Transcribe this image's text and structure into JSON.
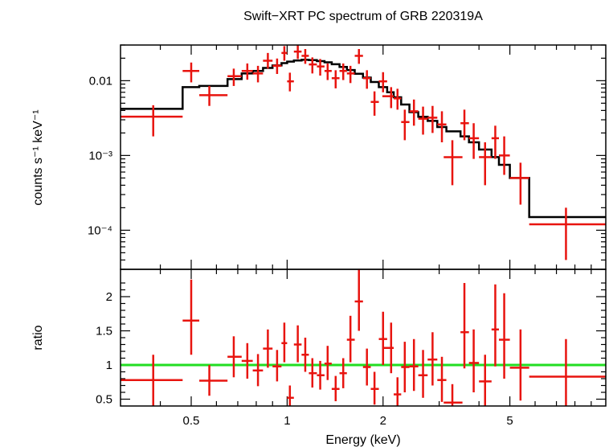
{
  "chart_data": [
    {
      "type": "step+errorbar",
      "panel": "spectrum",
      "title": "Swift−XRT PC spectrum of GRB 220319A",
      "ylabel": "counts s⁻¹ keV⁻¹",
      "xlabel": "",
      "xscale": "log",
      "yscale": "log",
      "xlim": [
        0.3,
        10
      ],
      "ylim": [
        3e-05,
        0.03
      ],
      "y_ticks": [
        {
          "value": 0.01,
          "label": "0.01"
        },
        {
          "value": 0.001,
          "label": "10⁻³"
        },
        {
          "value": 0.0001,
          "label": "10⁻⁴"
        }
      ],
      "colors": {
        "data": "#e8140f",
        "model": "#000000"
      },
      "series": [
        {
          "name": "",
          "kind": "data",
          "points": [
            {
              "x": 0.38,
              "xlo": 0.3,
              "xhi": 0.47,
              "y": 0.0033,
              "ylo": 0.0018,
              "yhi": 0.0047
            },
            {
              "x": 0.5,
              "xlo": 0.47,
              "xhi": 0.53,
              "y": 0.0135,
              "ylo": 0.0095,
              "yhi": 0.0175
            },
            {
              "x": 0.57,
              "xlo": 0.53,
              "xhi": 0.65,
              "y": 0.0064,
              "ylo": 0.0046,
              "yhi": 0.0085
            },
            {
              "x": 0.68,
              "xlo": 0.65,
              "xhi": 0.72,
              "y": 0.0115,
              "ylo": 0.0085,
              "yhi": 0.0145
            },
            {
              "x": 0.75,
              "xlo": 0.72,
              "xhi": 0.78,
              "y": 0.0135,
              "ylo": 0.0103,
              "yhi": 0.017
            },
            {
              "x": 0.81,
              "xlo": 0.78,
              "xhi": 0.84,
              "y": 0.0125,
              "ylo": 0.0095,
              "yhi": 0.0158
            },
            {
              "x": 0.87,
              "xlo": 0.84,
              "xhi": 0.9,
              "y": 0.0185,
              "ylo": 0.0145,
              "yhi": 0.0235
            },
            {
              "x": 0.93,
              "xlo": 0.9,
              "xhi": 0.96,
              "y": 0.0158,
              "ylo": 0.0123,
              "yhi": 0.0198
            },
            {
              "x": 0.98,
              "xlo": 0.96,
              "xhi": 1.0,
              "y": 0.0235,
              "ylo": 0.0185,
              "yhi": 0.029
            },
            {
              "x": 1.02,
              "xlo": 1.0,
              "xhi": 1.05,
              "y": 0.0098,
              "ylo": 0.0072,
              "yhi": 0.0128
            },
            {
              "x": 1.08,
              "xlo": 1.05,
              "xhi": 1.11,
              "y": 0.0245,
              "ylo": 0.0195,
              "yhi": 0.03
            },
            {
              "x": 1.14,
              "xlo": 1.11,
              "xhi": 1.17,
              "y": 0.0215,
              "ylo": 0.0168,
              "yhi": 0.0265
            },
            {
              "x": 1.2,
              "xlo": 1.17,
              "xhi": 1.24,
              "y": 0.0165,
              "ylo": 0.0125,
              "yhi": 0.0205
            },
            {
              "x": 1.27,
              "xlo": 1.24,
              "xhi": 1.31,
              "y": 0.0155,
              "ylo": 0.0117,
              "yhi": 0.0195
            },
            {
              "x": 1.34,
              "xlo": 1.31,
              "xhi": 1.38,
              "y": 0.0135,
              "ylo": 0.0102,
              "yhi": 0.017
            },
            {
              "x": 1.42,
              "xlo": 1.38,
              "xhi": 1.46,
              "y": 0.0108,
              "ylo": 0.0079,
              "yhi": 0.0138
            },
            {
              "x": 1.5,
              "xlo": 1.46,
              "xhi": 1.54,
              "y": 0.0135,
              "ylo": 0.0102,
              "yhi": 0.017
            },
            {
              "x": 1.58,
              "xlo": 1.54,
              "xhi": 1.63,
              "y": 0.0125,
              "ylo": 0.0093,
              "yhi": 0.0158
            },
            {
              "x": 1.68,
              "xlo": 1.63,
              "xhi": 1.73,
              "y": 0.0215,
              "ylo": 0.0168,
              "yhi": 0.0265
            },
            {
              "x": 1.78,
              "xlo": 1.73,
              "xhi": 1.83,
              "y": 0.0108,
              "ylo": 0.0078,
              "yhi": 0.0138
            },
            {
              "x": 1.88,
              "xlo": 1.83,
              "xhi": 1.94,
              "y": 0.0052,
              "ylo": 0.0034,
              "yhi": 0.0072
            },
            {
              "x": 2.0,
              "xlo": 1.94,
              "xhi": 2.06,
              "y": 0.0098,
              "ylo": 0.007,
              "yhi": 0.013
            },
            {
              "x": 2.12,
              "xlo": 1.99,
              "xhi": 2.16,
              "y": 0.0062,
              "ylo": 0.0043,
              "yhi": 0.0082
            },
            {
              "x": 2.22,
              "xlo": 2.16,
              "xhi": 2.28,
              "y": 0.0058,
              "ylo": 0.0041,
              "yhi": 0.0078
            },
            {
              "x": 2.34,
              "xlo": 2.28,
              "xhi": 2.42,
              "y": 0.0028,
              "ylo": 0.0016,
              "yhi": 0.0041
            },
            {
              "x": 2.5,
              "xlo": 2.42,
              "xhi": 2.58,
              "y": 0.0039,
              "ylo": 0.0025,
              "yhi": 0.0056
            },
            {
              "x": 2.67,
              "xlo": 2.58,
              "xhi": 2.76,
              "y": 0.0031,
              "ylo": 0.0019,
              "yhi": 0.0045
            },
            {
              "x": 2.86,
              "xlo": 2.76,
              "xhi": 2.96,
              "y": 0.0032,
              "ylo": 0.002,
              "yhi": 0.0046
            },
            {
              "x": 3.06,
              "xlo": 2.96,
              "xhi": 3.16,
              "y": 0.0026,
              "ylo": 0.0015,
              "yhi": 0.0039
            },
            {
              "x": 3.3,
              "xlo": 3.1,
              "xhi": 3.55,
              "y": 0.00095,
              "ylo": 0.0004,
              "yhi": 0.0016
            },
            {
              "x": 3.6,
              "xlo": 3.5,
              "xhi": 3.72,
              "y": 0.0027,
              "ylo": 0.0016,
              "yhi": 0.0041
            },
            {
              "x": 3.85,
              "xlo": 3.72,
              "xhi": 4.0,
              "y": 0.0017,
              "ylo": 0.0009,
              "yhi": 0.0027
            },
            {
              "x": 4.18,
              "xlo": 4.0,
              "xhi": 4.38,
              "y": 0.00095,
              "ylo": 0.0004,
              "yhi": 0.0015
            },
            {
              "x": 4.5,
              "xlo": 4.38,
              "xhi": 4.62,
              "y": 0.0017,
              "ylo": 0.0009,
              "yhi": 0.0025
            },
            {
              "x": 4.8,
              "xlo": 4.62,
              "xhi": 5.0,
              "y": 0.001,
              "ylo": 0.00055,
              "yhi": 0.0018
            },
            {
              "x": 5.4,
              "xlo": 5.0,
              "xhi": 5.75,
              "y": 0.0005,
              "ylo": 0.00022,
              "yhi": 0.0008
            },
            {
              "x": 7.5,
              "xlo": 5.75,
              "xhi": 10.0,
              "y": 0.00012,
              "ylo": 4e-05,
              "yhi": 0.0002
            }
          ]
        },
        {
          "name": "",
          "kind": "model",
          "steps": [
            {
              "xlo": 0.3,
              "xhi": 0.47,
              "y": 0.0042
            },
            {
              "xlo": 0.47,
              "xhi": 0.53,
              "y": 0.0082
            },
            {
              "xlo": 0.53,
              "xhi": 0.65,
              "y": 0.0085
            },
            {
              "xlo": 0.65,
              "xhi": 0.72,
              "y": 0.0105
            },
            {
              "xlo": 0.72,
              "xhi": 0.78,
              "y": 0.0125
            },
            {
              "xlo": 0.78,
              "xhi": 0.84,
              "y": 0.0135
            },
            {
              "xlo": 0.84,
              "xhi": 0.9,
              "y": 0.0148
            },
            {
              "xlo": 0.9,
              "xhi": 0.96,
              "y": 0.016
            },
            {
              "xlo": 0.96,
              "xhi": 1.0,
              "y": 0.0172
            },
            {
              "xlo": 1.0,
              "xhi": 1.05,
              "y": 0.018
            },
            {
              "xlo": 1.05,
              "xhi": 1.11,
              "y": 0.0186
            },
            {
              "xlo": 1.11,
              "xhi": 1.17,
              "y": 0.019
            },
            {
              "xlo": 1.17,
              "xhi": 1.24,
              "y": 0.0189
            },
            {
              "xlo": 1.24,
              "xhi": 1.31,
              "y": 0.0183
            },
            {
              "xlo": 1.31,
              "xhi": 1.38,
              "y": 0.0176
            },
            {
              "xlo": 1.38,
              "xhi": 1.46,
              "y": 0.0166
            },
            {
              "xlo": 1.46,
              "xhi": 1.54,
              "y": 0.0153
            },
            {
              "xlo": 1.54,
              "xhi": 1.63,
              "y": 0.0139
            },
            {
              "xlo": 1.63,
              "xhi": 1.73,
              "y": 0.0124
            },
            {
              "xlo": 1.73,
              "xhi": 1.83,
              "y": 0.011
            },
            {
              "xlo": 1.83,
              "xhi": 1.94,
              "y": 0.0096
            },
            {
              "xlo": 1.94,
              "xhi": 2.06,
              "y": 0.0082
            },
            {
              "xlo": 2.06,
              "xhi": 2.16,
              "y": 0.007
            },
            {
              "xlo": 2.16,
              "xhi": 2.28,
              "y": 0.006
            },
            {
              "xlo": 2.28,
              "xhi": 2.42,
              "y": 0.0048
            },
            {
              "xlo": 2.42,
              "xhi": 2.58,
              "y": 0.0038
            },
            {
              "xlo": 2.58,
              "xhi": 2.76,
              "y": 0.0033
            },
            {
              "xlo": 2.76,
              "xhi": 2.96,
              "y": 0.0029
            },
            {
              "xlo": 2.96,
              "xhi": 3.16,
              "y": 0.0024
            },
            {
              "xlo": 3.16,
              "xhi": 3.5,
              "y": 0.0021
            },
            {
              "xlo": 3.5,
              "xhi": 3.72,
              "y": 0.0018
            },
            {
              "xlo": 3.72,
              "xhi": 4.0,
              "y": 0.0015
            },
            {
              "xlo": 4.0,
              "xhi": 4.38,
              "y": 0.0012
            },
            {
              "xlo": 4.38,
              "xhi": 4.62,
              "y": 0.00095
            },
            {
              "xlo": 4.62,
              "xhi": 5.0,
              "y": 0.00075
            },
            {
              "xlo": 5.0,
              "xhi": 5.75,
              "y": 0.0005
            },
            {
              "xlo": 5.75,
              "xhi": 10.0,
              "y": 0.00015
            }
          ]
        }
      ]
    },
    {
      "type": "errorbar",
      "panel": "ratio",
      "xlabel": "Energy (keV)",
      "ylabel": "ratio",
      "xscale": "log",
      "yscale": "linear",
      "xlim": [
        0.3,
        10
      ],
      "ylim": [
        0.4,
        2.4
      ],
      "x_ticks": [
        {
          "value": 0.5,
          "label": "0.5"
        },
        {
          "value": 1,
          "label": "1"
        },
        {
          "value": 2,
          "label": "2"
        },
        {
          "value": 5,
          "label": "5"
        }
      ],
      "y_ticks": [
        {
          "value": 0.5,
          "label": "0.5"
        },
        {
          "value": 1,
          "label": "1"
        },
        {
          "value": 1.5,
          "label": "1.5"
        },
        {
          "value": 2,
          "label": "2"
        }
      ],
      "reference_line": {
        "y": 1,
        "color": "#22dd22"
      },
      "colors": {
        "data": "#e8140f"
      },
      "series": [
        {
          "name": "",
          "points": [
            {
              "x": 0.38,
              "xlo": 0.3,
              "xhi": 0.47,
              "y": 0.78,
              "ylo": 0.4,
              "yhi": 1.15
            },
            {
              "x": 0.5,
              "xlo": 0.47,
              "xhi": 0.53,
              "y": 1.65,
              "ylo": 1.15,
              "yhi": 2.25
            },
            {
              "x": 0.57,
              "xlo": 0.53,
              "xhi": 0.65,
              "y": 0.77,
              "ylo": 0.55,
              "yhi": 1.0
            },
            {
              "x": 0.68,
              "xlo": 0.65,
              "xhi": 0.72,
              "y": 1.12,
              "ylo": 0.82,
              "yhi": 1.42
            },
            {
              "x": 0.75,
              "xlo": 0.72,
              "xhi": 0.78,
              "y": 1.06,
              "ylo": 0.8,
              "yhi": 1.32
            },
            {
              "x": 0.81,
              "xlo": 0.78,
              "xhi": 0.84,
              "y": 0.92,
              "ylo": 0.69,
              "yhi": 1.16
            },
            {
              "x": 0.87,
              "xlo": 0.84,
              "xhi": 0.9,
              "y": 1.24,
              "ylo": 0.96,
              "yhi": 1.52
            },
            {
              "x": 0.93,
              "xlo": 0.9,
              "xhi": 0.96,
              "y": 0.98,
              "ylo": 0.76,
              "yhi": 1.22
            },
            {
              "x": 0.98,
              "xlo": 0.96,
              "xhi": 1.0,
              "y": 1.32,
              "ylo": 1.04,
              "yhi": 1.62
            },
            {
              "x": 1.02,
              "xlo": 1.0,
              "xhi": 1.05,
              "y": 0.52,
              "ylo": 0.4,
              "yhi": 0.7
            },
            {
              "x": 1.08,
              "xlo": 1.05,
              "xhi": 1.11,
              "y": 1.3,
              "ylo": 1.04,
              "yhi": 1.58
            },
            {
              "x": 1.14,
              "xlo": 1.11,
              "xhi": 1.17,
              "y": 1.15,
              "ylo": 0.9,
              "yhi": 1.4
            },
            {
              "x": 1.2,
              "xlo": 1.17,
              "xhi": 1.24,
              "y": 0.88,
              "ylo": 0.67,
              "yhi": 1.1
            },
            {
              "x": 1.27,
              "xlo": 1.24,
              "xhi": 1.31,
              "y": 0.85,
              "ylo": 0.64,
              "yhi": 1.06
            },
            {
              "x": 1.34,
              "xlo": 1.31,
              "xhi": 1.38,
              "y": 1.02,
              "ylo": 0.78,
              "yhi": 1.28
            },
            {
              "x": 1.42,
              "xlo": 1.38,
              "xhi": 1.46,
              "y": 0.65,
              "ylo": 0.47,
              "yhi": 0.84
            },
            {
              "x": 1.5,
              "xlo": 1.46,
              "xhi": 1.54,
              "y": 0.88,
              "ylo": 0.66,
              "yhi": 1.1
            },
            {
              "x": 1.58,
              "xlo": 1.54,
              "xhi": 1.63,
              "y": 1.37,
              "ylo": 1.04,
              "yhi": 1.72
            },
            {
              "x": 1.68,
              "xlo": 1.63,
              "xhi": 1.73,
              "y": 1.93,
              "ylo": 1.5,
              "yhi": 2.4
            },
            {
              "x": 1.78,
              "xlo": 1.73,
              "xhi": 1.83,
              "y": 0.97,
              "ylo": 0.7,
              "yhi": 1.24
            },
            {
              "x": 1.88,
              "xlo": 1.83,
              "xhi": 1.94,
              "y": 0.65,
              "ylo": 0.42,
              "yhi": 0.9
            },
            {
              "x": 2.0,
              "xlo": 1.94,
              "xhi": 2.06,
              "y": 1.38,
              "ylo": 1.0,
              "yhi": 1.78
            },
            {
              "x": 2.12,
              "xlo": 1.99,
              "xhi": 2.16,
              "y": 1.25,
              "ylo": 0.88,
              "yhi": 1.62
            },
            {
              "x": 2.22,
              "xlo": 2.16,
              "xhi": 2.28,
              "y": 0.57,
              "ylo": 0.4,
              "yhi": 0.82
            },
            {
              "x": 2.34,
              "xlo": 2.28,
              "xhi": 2.42,
              "y": 0.97,
              "ylo": 0.6,
              "yhi": 1.34
            },
            {
              "x": 2.5,
              "xlo": 2.42,
              "xhi": 2.58,
              "y": 0.98,
              "ylo": 0.62,
              "yhi": 1.38
            },
            {
              "x": 2.67,
              "xlo": 2.58,
              "xhi": 2.76,
              "y": 0.85,
              "ylo": 0.52,
              "yhi": 1.22
            },
            {
              "x": 2.86,
              "xlo": 2.76,
              "xhi": 2.96,
              "y": 1.08,
              "ylo": 0.7,
              "yhi": 1.48
            },
            {
              "x": 3.06,
              "xlo": 2.96,
              "xhi": 3.16,
              "y": 0.78,
              "ylo": 0.46,
              "yhi": 1.12
            },
            {
              "x": 3.3,
              "xlo": 3.1,
              "xhi": 3.55,
              "y": 0.45,
              "ylo": 0.4,
              "yhi": 0.72
            },
            {
              "x": 3.6,
              "xlo": 3.5,
              "xhi": 3.72,
              "y": 1.48,
              "ylo": 0.95,
              "yhi": 2.2
            },
            {
              "x": 3.85,
              "xlo": 3.72,
              "xhi": 4.0,
              "y": 1.03,
              "ylo": 0.6,
              "yhi": 1.52
            },
            {
              "x": 4.18,
              "xlo": 4.0,
              "xhi": 4.38,
              "y": 0.76,
              "ylo": 0.4,
              "yhi": 1.15
            },
            {
              "x": 4.5,
              "xlo": 4.38,
              "xhi": 4.62,
              "y": 1.52,
              "ylo": 0.98,
              "yhi": 2.18
            },
            {
              "x": 4.8,
              "xlo": 4.62,
              "xhi": 5.0,
              "y": 1.37,
              "ylo": 0.8,
              "yhi": 2.05
            },
            {
              "x": 5.4,
              "xlo": 5.0,
              "xhi": 5.75,
              "y": 0.96,
              "ylo": 0.48,
              "yhi": 1.52
            },
            {
              "x": 7.5,
              "xlo": 5.75,
              "xhi": 10.0,
              "y": 0.83,
              "ylo": 0.4,
              "yhi": 1.38
            }
          ]
        }
      ]
    }
  ]
}
